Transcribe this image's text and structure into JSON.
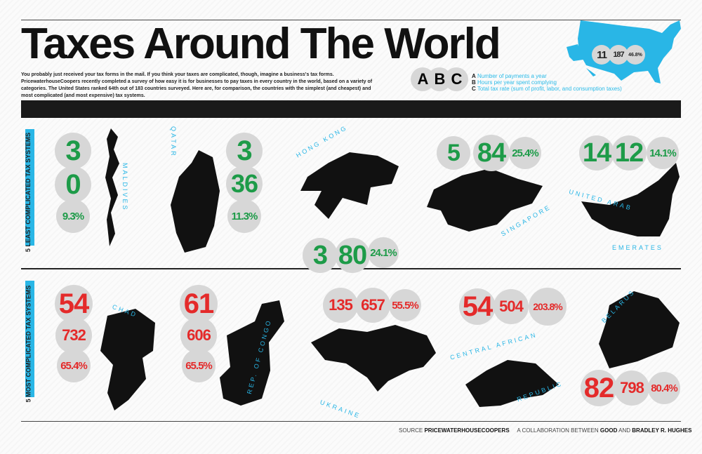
{
  "header": {
    "title": "Taxes Around The World",
    "intro": "You probably just received your tax forms in the mail. If you think your taxes are complicated, though, imagine a business's tax forms. PricewaterhouseCoopers recently completed a survey of how easy it is for businesses to pay taxes in every country in the world, based on a variety of categories. The United States ranked 64th out of 183 countries surveyed. Here are, for comparison, the countries with the simplest (and cheapest) and most complicated (and most expensive) tax systems."
  },
  "legend": {
    "letters": [
      "A",
      "B",
      "C"
    ],
    "items": [
      {
        "key": "A",
        "text": "Number of payments a year"
      },
      {
        "key": "B",
        "text": "Hours per year spent complying"
      },
      {
        "key": "C",
        "text": "Total tax rate (sum of profit, labor, and consumption taxes)"
      }
    ]
  },
  "usa": {
    "payments": "11",
    "hours": "187",
    "rate": "46.8%",
    "color": "#29b6e6"
  },
  "colors": {
    "least": "#1d9b48",
    "most": "#e42a2a",
    "accent": "#29b6e6",
    "circle": "#d7d7d7"
  },
  "sections": [
    {
      "label": "5 LEAST COMPLICATED TAX SYSTEMS",
      "countries": [
        {
          "name": "MALDIVES",
          "values": [
            "3",
            "0",
            "9.3%"
          ]
        },
        {
          "name": "QATAR",
          "values": [
            "3",
            "36",
            "11.3%"
          ]
        },
        {
          "name": "HONG KONG",
          "values": [
            "3",
            "80",
            "24.1%"
          ]
        },
        {
          "name": "SINGAPORE",
          "values": [
            "5",
            "84",
            "25.4%"
          ]
        },
        {
          "name": "UNITED ARAB",
          "name2": "EMERATES",
          "values": [
            "14",
            "12",
            "14.1%"
          ]
        }
      ]
    },
    {
      "label": "5 MOST COMPLICATED TAX SYSTEMS",
      "countries": [
        {
          "name": "CHAD",
          "values": [
            "54",
            "732",
            "65.4%"
          ]
        },
        {
          "name": "REP. OF CONGO",
          "values": [
            "61",
            "606",
            "65.5%"
          ]
        },
        {
          "name": "UKRAINE",
          "values": [
            "135",
            "657",
            "55.5%"
          ]
        },
        {
          "name": "CENTRAL AFRICAN",
          "name2": "REPUBLIC",
          "values": [
            "54",
            "504",
            "203.8%"
          ]
        },
        {
          "name": "BELARUS",
          "values": [
            "82",
            "798",
            "80.4%"
          ]
        }
      ]
    }
  ],
  "footer": {
    "source_label": "SOURCE",
    "source": "PRICEWATERHOUSECOOPERS",
    "collab_label": "A COLLABORATION BETWEEN",
    "collab1": "GOOD",
    "and": "AND",
    "collab2": "BRADLEY R. HUGHES"
  }
}
